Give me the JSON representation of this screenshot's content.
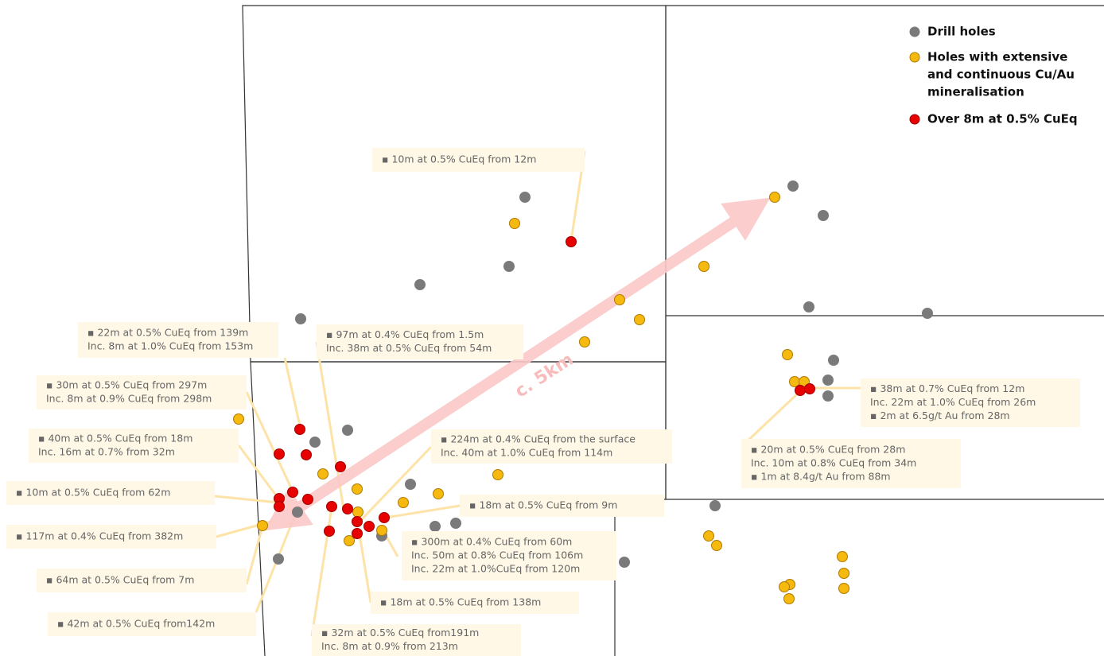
{
  "legend": [
    {
      "lines": [
        "Drill holes"
      ]
    },
    {
      "lines": [
        "Holes with extensive",
        "and continuous Cu/Au",
        "mineralisation"
      ]
    },
    {
      "lines": [
        "Over 8m at 0.5% CuEq"
      ]
    }
  ],
  "arrow_label": "c. 5km",
  "callouts": [
    {
      "lines": [
        "▪ 10m at 0.5% CuEq from 12m"
      ]
    },
    {
      "lines": [
        "▪ 22m at 0.5% CuEq from 139m",
        "Inc. 8m at 1.0% CuEq from 153m"
      ]
    },
    {
      "lines": [
        "▪ 97m at 0.4% CuEq from 1.5m",
        "Inc. 38m at 0.5% CuEq from 54m"
      ]
    },
    {
      "lines": [
        "▪ 30m at 0.5% CuEq from 297m",
        "Inc. 8m at 0.9% CuEq from 298m"
      ]
    },
    {
      "lines": [
        "▪ 40m at 0.5% CuEq from 18m",
        "Inc. 16m at 0.7% from 32m"
      ]
    },
    {
      "lines": [
        "▪ 10m at 0.5% CuEq from 62m"
      ]
    },
    {
      "lines": [
        "▪ 117m at 0.4% CuEq from 382m"
      ]
    },
    {
      "lines": [
        "▪ 64m at 0.5% CuEq from 7m"
      ]
    },
    {
      "lines": [
        "▪ 42m at 0.5% CuEq from142m"
      ]
    },
    {
      "lines": [
        "▪ 224m at 0.4% CuEq from the surface",
        "Inc. 40m at 1.0% CuEq from 114m"
      ]
    },
    {
      "lines": [
        "▪ 18m at 0.5% CuEq from 9m"
      ]
    },
    {
      "lines": [
        "▪ 300m at 0.4% CuEq from 60m",
        "Inc. 50m at 0.8% CuEq from 106m",
        "Inc. 22m at 1.0%CuEq from 120m"
      ]
    },
    {
      "lines": [
        "▪ 18m at 0.5% CuEq from 138m"
      ]
    },
    {
      "lines": [
        "▪ 32m at 0.5% CuEq from191m",
        "Inc. 8m at 0.9% from 213m"
      ]
    },
    {
      "lines": [
        "▪ 38m at 0.7% CuEq from 12m",
        "Inc. 22m at 1.0% CuEq from 26m",
        "▪ 2m at 6.5g/t Au from 28m"
      ]
    },
    {
      "lines": [
        "▪ 20m at 0.5% CuEq from 28m",
        "Inc. 10m at 0.8% CuEq from 34m",
        "▪ 1m at 8.4g/t Au from 88m"
      ]
    }
  ]
}
